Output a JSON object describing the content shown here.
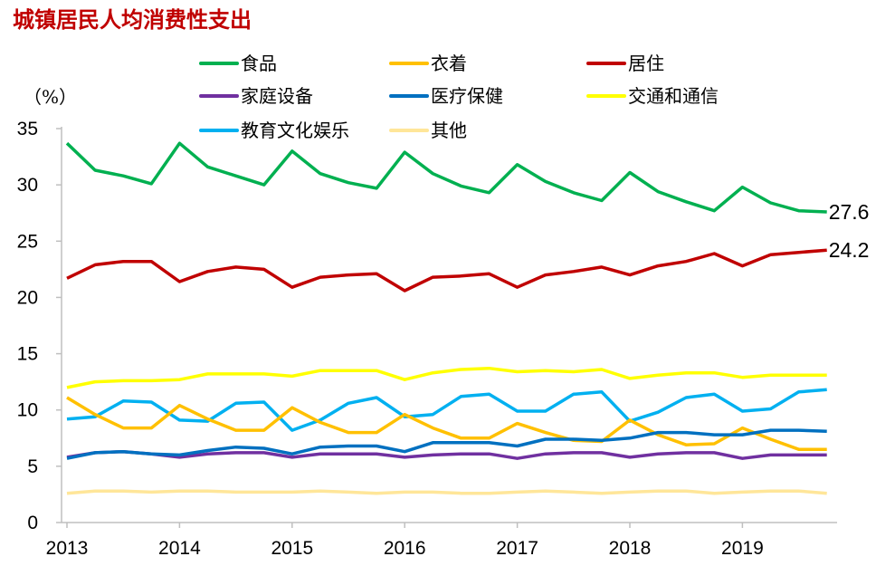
{
  "chart_data": {
    "type": "line",
    "title": "城镇居民人均消费性支出",
    "ylabel": "（%）",
    "ylim": [
      0,
      35
    ],
    "yticks": [
      0,
      5,
      10,
      15,
      20,
      25,
      30,
      35
    ],
    "xticks": [
      "2013",
      "2014",
      "2015",
      "2016",
      "2017",
      "2018",
      "2019"
    ],
    "x_frequency": "quarterly, 2013Q1–2019Q4",
    "grid": false,
    "legend_position": "top",
    "series": [
      {
        "name": "食品",
        "color": "#00b050",
        "values": [
          33.7,
          31.3,
          30.8,
          30.1,
          33.7,
          31.6,
          30.8,
          30.0,
          33.0,
          31.0,
          30.2,
          29.7,
          32.9,
          31.0,
          29.9,
          29.3,
          31.8,
          30.3,
          29.3,
          28.6,
          31.1,
          29.4,
          28.5,
          27.7,
          29.8,
          28.4,
          27.7,
          27.6
        ],
        "end_label": "27.6"
      },
      {
        "name": "衣着",
        "color": "#ffc000",
        "values": [
          11.1,
          9.6,
          8.4,
          8.4,
          10.4,
          9.2,
          8.2,
          8.2,
          10.2,
          8.9,
          8.0,
          8.0,
          9.6,
          8.4,
          7.5,
          7.5,
          8.8,
          8.0,
          7.3,
          7.2,
          9.1,
          7.8,
          6.9,
          7.0,
          8.4,
          7.4,
          6.5,
          6.5
        ]
      },
      {
        "name": "居住",
        "color": "#c00000",
        "values": [
          21.7,
          22.9,
          23.2,
          23.2,
          21.4,
          22.3,
          22.7,
          22.5,
          20.9,
          21.8,
          22.0,
          22.1,
          20.6,
          21.8,
          21.9,
          22.1,
          20.9,
          22.0,
          22.3,
          22.7,
          22.0,
          22.8,
          23.2,
          23.9,
          22.8,
          23.8,
          24.0,
          24.2
        ],
        "end_label": "24.2"
      },
      {
        "name": "家庭设备",
        "color": "#7030a0",
        "values": [
          5.8,
          6.2,
          6.3,
          6.1,
          5.8,
          6.1,
          6.2,
          6.2,
          5.8,
          6.1,
          6.1,
          6.1,
          5.8,
          6.0,
          6.1,
          6.1,
          5.7,
          6.1,
          6.2,
          6.2,
          5.8,
          6.1,
          6.2,
          6.2,
          5.7,
          6.0,
          6.0,
          6.0
        ]
      },
      {
        "name": "医疗保健",
        "color": "#0070c0",
        "values": [
          5.7,
          6.2,
          6.3,
          6.1,
          6.0,
          6.4,
          6.7,
          6.6,
          6.1,
          6.7,
          6.8,
          6.8,
          6.3,
          7.1,
          7.1,
          7.1,
          6.8,
          7.4,
          7.4,
          7.3,
          7.5,
          8.0,
          8.0,
          7.8,
          7.8,
          8.2,
          8.2,
          8.1
        ]
      },
      {
        "name": "交通和通信",
        "color": "#ffff00",
        "values": [
          12.0,
          12.5,
          12.6,
          12.6,
          12.7,
          13.2,
          13.2,
          13.2,
          13.0,
          13.5,
          13.5,
          13.5,
          12.7,
          13.3,
          13.6,
          13.7,
          13.4,
          13.5,
          13.4,
          13.6,
          12.8,
          13.1,
          13.3,
          13.3,
          12.9,
          13.1,
          13.1,
          13.1
        ]
      },
      {
        "name": "教育文化娱乐",
        "color": "#00b0f0",
        "values": [
          9.2,
          9.4,
          10.8,
          10.7,
          9.1,
          9.0,
          10.6,
          10.7,
          8.2,
          9.1,
          10.6,
          11.1,
          9.4,
          9.6,
          11.2,
          11.4,
          9.9,
          9.9,
          11.4,
          11.6,
          9.0,
          9.8,
          11.1,
          11.4,
          9.9,
          10.1,
          11.6,
          11.8
        ]
      },
      {
        "name": "其他",
        "color": "#ffe699",
        "values": [
          2.6,
          2.8,
          2.8,
          2.7,
          2.8,
          2.8,
          2.7,
          2.7,
          2.7,
          2.8,
          2.7,
          2.6,
          2.7,
          2.7,
          2.6,
          2.6,
          2.7,
          2.8,
          2.7,
          2.6,
          2.7,
          2.8,
          2.8,
          2.6,
          2.7,
          2.8,
          2.8,
          2.6
        ]
      }
    ]
  }
}
